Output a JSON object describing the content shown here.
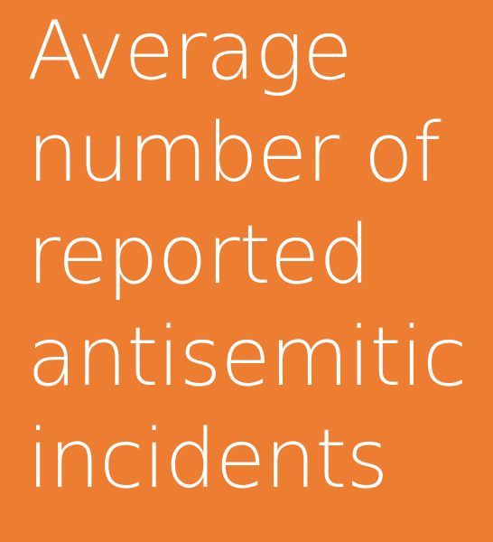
{
  "title": {
    "lines": [
      "Average",
      "number of",
      "reported",
      "antisemitic",
      "incidents"
    ]
  },
  "colors": {
    "background": "#ED7D31",
    "text": "#FFFFFF"
  }
}
